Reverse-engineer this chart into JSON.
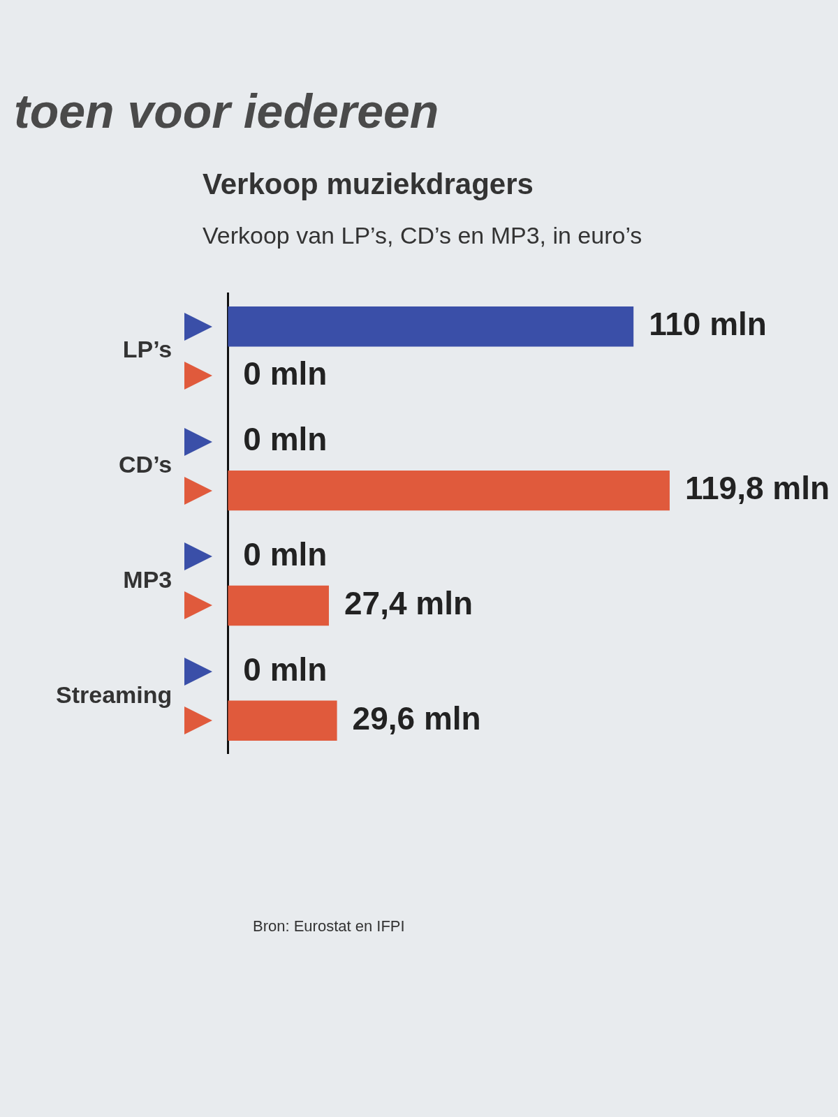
{
  "chart_data": {
    "type": "bar",
    "orientation": "horizontal",
    "title": "Verkoop muziekdragers",
    "subtitle": "Verkoop van LP’s, CD’s en MP3, in euro’s",
    "categories": [
      "LP’s",
      "CD’s",
      "MP3",
      "Streaming"
    ],
    "series": [
      {
        "color": "#3a4fa8",
        "values": [
          110,
          0,
          0,
          0
        ],
        "value_labels": [
          "110 mln",
          "0 mln",
          "0 mln",
          "0 mln"
        ]
      },
      {
        "color": "#e05a3c",
        "values": [
          0,
          119.8,
          27.4,
          29.6
        ],
        "value_labels": [
          "0 mln",
          "119,8 mln",
          "27,4 mln",
          "29,6 mln"
        ]
      }
    ],
    "legend": false,
    "annotations": [
      "toen voor iedereen",
      "Bron: Eurostat en IFPI"
    ]
  }
}
